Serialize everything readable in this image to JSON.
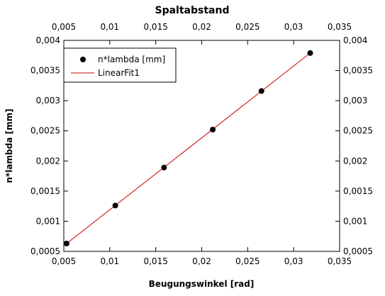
{
  "chart_data": {
    "type": "scatter",
    "title": "Spaltabstand",
    "xlabel": "Beugungswinkel [rad]",
    "ylabel": "n*lambda [mm]",
    "xlim": [
      0.005,
      0.035
    ],
    "ylim": [
      0.0005,
      0.004
    ],
    "x_ticks": [
      "0,005",
      "0,01",
      "0,015",
      "0,02",
      "0,025",
      "0,03",
      "0,035"
    ],
    "x_tick_values": [
      0.005,
      0.01,
      0.015,
      0.02,
      0.025,
      0.03,
      0.035
    ],
    "y_ticks": [
      "0,0005",
      "0,001",
      "0,0015",
      "0,002",
      "0,0025",
      "0,003",
      "0,0035",
      "0,004"
    ],
    "y_tick_values": [
      0.0005,
      0.001,
      0.0015,
      0.002,
      0.0025,
      0.003,
      0.0035,
      0.004
    ],
    "grid": false,
    "legend_position": "top-left",
    "series": [
      {
        "name": "n*lambda [mm]",
        "kind": "points",
        "color": "#000000",
        "x": [
          0.0053,
          0.0106,
          0.0159,
          0.0212,
          0.0265,
          0.0318
        ],
        "y": [
          0.00063,
          0.00126,
          0.00189,
          0.00252,
          0.00316,
          0.00379
        ]
      },
      {
        "name": "LinearFit1",
        "kind": "line",
        "color": "#cc0000",
        "x": [
          0.0053,
          0.0318
        ],
        "y": [
          0.00063,
          0.00379
        ]
      }
    ]
  }
}
